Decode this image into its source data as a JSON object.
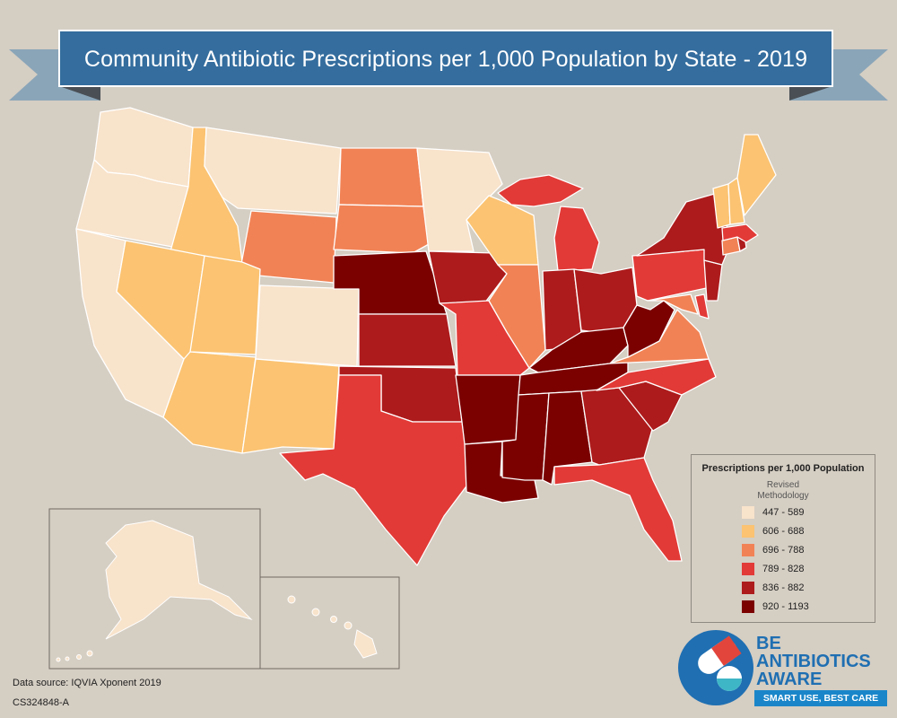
{
  "title": "Community Antibiotic Prescriptions per 1,000 Population by State - 2019",
  "legend": {
    "title": "Prescriptions per 1,000 Population",
    "subtitle_line1": "Revised",
    "subtitle_line2": "Methodology",
    "items": [
      {
        "label": "447 - 589",
        "color": "#f8e3cb"
      },
      {
        "label": "606 - 688",
        "color": "#fbc372"
      },
      {
        "label": "696 - 788",
        "color": "#f18255"
      },
      {
        "label": "789 - 828",
        "color": "#e23a37"
      },
      {
        "label": "836 - 882",
        "color": "#ad1b1c"
      },
      {
        "label": "920 - 1193",
        "color": "#7b0000"
      }
    ]
  },
  "footer": {
    "source": "Data source: IQVIA Xponent 2019",
    "code": "CS324848-A"
  },
  "logo": {
    "line1": "BE",
    "line2": "ANTIBIOTICS",
    "line3": "AWARE",
    "tagline": "SMART USE, BEST CARE"
  },
  "colors": {
    "background": "#d5cec3",
    "banner": "#346d9e",
    "banner_border": "#ffffff",
    "ribbon": "#8aa5b8",
    "ribbon_fold": "#4a4f55",
    "state_border": "#ffffff"
  },
  "icons": {
    "logo_mark": "pill-capsule-icon"
  }
}
